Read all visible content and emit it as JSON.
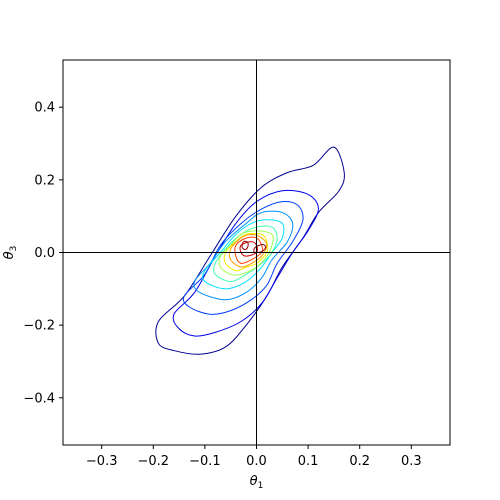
{
  "chart_data": {
    "type": "contour",
    "title": "",
    "xlabel": "θ1",
    "ylabel": "θ3",
    "xlim": [
      -0.375,
      0.375
    ],
    "ylim": [
      -0.53,
      0.53
    ],
    "xticks": [
      -0.3,
      -0.2,
      -0.1,
      0.0,
      0.1,
      0.2,
      0.3
    ],
    "xtick_labels": [
      "−0.3",
      "−0.2",
      "−0.1",
      "0.0",
      "0.1",
      "0.2",
      "0.3"
    ],
    "yticks": [
      0.4,
      0.2,
      0.0,
      -0.2,
      -0.4
    ],
    "ytick_labels": [
      "0.4",
      "0.2",
      "0.0",
      "−0.2",
      "−0.4"
    ],
    "reference_lines": {
      "x": 0.0,
      "y": 0.0,
      "color": "#000000"
    },
    "grid": false,
    "legend": false,
    "colormap": "jet",
    "density_center": [
      -0.01,
      0.01
    ],
    "contours": [
      {
        "level": 1,
        "color": "#00008f",
        "points": [
          [
            -0.16,
            -0.27
          ],
          [
            -0.19,
            -0.25
          ],
          [
            -0.19,
            -0.19
          ],
          [
            -0.14,
            -0.12
          ],
          [
            -0.09,
            -0.01
          ],
          [
            -0.04,
            0.1
          ],
          [
            0.01,
            0.18
          ],
          [
            0.06,
            0.22
          ],
          [
            0.11,
            0.24
          ],
          [
            0.15,
            0.29
          ],
          [
            0.17,
            0.22
          ],
          [
            0.16,
            0.17
          ],
          [
            0.12,
            0.11
          ],
          [
            0.09,
            0.04
          ],
          [
            0.05,
            -0.04
          ],
          [
            0.02,
            -0.12
          ],
          [
            -0.02,
            -0.2
          ],
          [
            -0.06,
            -0.26
          ],
          [
            -0.11,
            -0.28
          ]
        ]
      },
      {
        "level": 2,
        "color": "#0000ee",
        "points": [
          [
            -0.15,
            -0.21
          ],
          [
            -0.16,
            -0.17
          ],
          [
            -0.12,
            -0.11
          ],
          [
            -0.08,
            -0.01
          ],
          [
            -0.04,
            0.08
          ],
          [
            0.0,
            0.14
          ],
          [
            0.05,
            0.17
          ],
          [
            0.1,
            0.16
          ],
          [
            0.12,
            0.12
          ],
          [
            0.1,
            0.06
          ],
          [
            0.07,
            0.0
          ],
          [
            0.04,
            -0.07
          ],
          [
            0.01,
            -0.14
          ],
          [
            -0.03,
            -0.19
          ],
          [
            -0.08,
            -0.22
          ],
          [
            -0.12,
            -0.23
          ]
        ]
      },
      {
        "level": 3,
        "color": "#0040ff",
        "points": [
          [
            -0.13,
            -0.15
          ],
          [
            -0.14,
            -0.12
          ],
          [
            -0.1,
            -0.06
          ],
          [
            -0.07,
            0.02
          ],
          [
            -0.03,
            0.08
          ],
          [
            0.01,
            0.12
          ],
          [
            0.05,
            0.14
          ],
          [
            0.08,
            0.13
          ],
          [
            0.09,
            0.09
          ],
          [
            0.07,
            0.03
          ],
          [
            0.04,
            -0.03
          ],
          [
            0.02,
            -0.09
          ],
          [
            -0.01,
            -0.13
          ],
          [
            -0.05,
            -0.16
          ],
          [
            -0.09,
            -0.17
          ]
        ]
      },
      {
        "level": 4,
        "color": "#0090ff",
        "points": [
          [
            -0.11,
            -0.11
          ],
          [
            -0.12,
            -0.08
          ],
          [
            -0.09,
            -0.03
          ],
          [
            -0.06,
            0.03
          ],
          [
            -0.02,
            0.08
          ],
          [
            0.01,
            0.11
          ],
          [
            0.05,
            0.11
          ],
          [
            0.07,
            0.08
          ],
          [
            0.06,
            0.03
          ],
          [
            0.03,
            -0.02
          ],
          [
            0.01,
            -0.07
          ],
          [
            -0.02,
            -0.11
          ],
          [
            -0.06,
            -0.13
          ]
        ]
      },
      {
        "level": 5,
        "color": "#00e0ff",
        "points": [
          [
            -0.1,
            -0.08
          ],
          [
            -0.1,
            -0.05
          ],
          [
            -0.07,
            0.0
          ],
          [
            -0.04,
            0.05
          ],
          [
            -0.01,
            0.08
          ],
          [
            0.02,
            0.09
          ],
          [
            0.05,
            0.08
          ],
          [
            0.05,
            0.04
          ],
          [
            0.03,
            0.0
          ],
          [
            0.01,
            -0.04
          ],
          [
            -0.02,
            -0.08
          ],
          [
            -0.06,
            -0.1
          ]
        ]
      },
      {
        "level": 6,
        "color": "#40ffb0",
        "points": [
          [
            -0.08,
            -0.06
          ],
          [
            -0.08,
            -0.03
          ],
          [
            -0.06,
            0.01
          ],
          [
            -0.03,
            0.05
          ],
          [
            0.0,
            0.07
          ],
          [
            0.03,
            0.07
          ],
          [
            0.04,
            0.04
          ],
          [
            0.03,
            0.0
          ],
          [
            0.01,
            -0.03
          ],
          [
            -0.02,
            -0.06
          ],
          [
            -0.05,
            -0.08
          ]
        ]
      },
      {
        "level": 7,
        "color": "#a0ff50",
        "points": [
          [
            -0.07,
            -0.04
          ],
          [
            -0.07,
            -0.01
          ],
          [
            -0.05,
            0.02
          ],
          [
            -0.03,
            0.05
          ],
          [
            0.0,
            0.06
          ],
          [
            0.03,
            0.05
          ],
          [
            0.03,
            0.02
          ],
          [
            0.02,
            -0.01
          ],
          [
            0.0,
            -0.04
          ],
          [
            -0.03,
            -0.06
          ],
          [
            -0.05,
            -0.06
          ]
        ]
      },
      {
        "level": 8,
        "color": "#f0f000",
        "points": [
          [
            -0.06,
            -0.03
          ],
          [
            -0.06,
            0.0
          ],
          [
            -0.04,
            0.03
          ],
          [
            -0.02,
            0.05
          ],
          [
            0.01,
            0.05
          ],
          [
            0.02,
            0.03
          ],
          [
            0.02,
            0.0
          ],
          [
            0.0,
            -0.03
          ],
          [
            -0.02,
            -0.04
          ],
          [
            -0.04,
            -0.05
          ]
        ]
      },
      {
        "level": 9,
        "color": "#ffa000",
        "points": [
          [
            -0.05,
            -0.02
          ],
          [
            -0.05,
            0.01
          ],
          [
            -0.03,
            0.04
          ],
          [
            -0.01,
            0.05
          ],
          [
            0.01,
            0.04
          ],
          [
            0.02,
            0.02
          ],
          [
            0.01,
            -0.01
          ],
          [
            -0.01,
            -0.03
          ],
          [
            -0.03,
            -0.04
          ]
        ]
      },
      {
        "level": 10,
        "color": "#ff4000",
        "points": [
          [
            -0.04,
            -0.01
          ],
          [
            -0.04,
            0.02
          ],
          [
            -0.02,
            0.04
          ],
          [
            0.0,
            0.04
          ],
          [
            0.01,
            0.02
          ],
          [
            0.01,
            0.0
          ],
          [
            -0.01,
            -0.02
          ],
          [
            -0.03,
            -0.03
          ]
        ]
      },
      {
        "level": 11,
        "color": "#d00000",
        "points": [
          [
            -0.03,
            0.0
          ],
          [
            -0.03,
            0.02
          ],
          [
            -0.01,
            0.03
          ],
          [
            0.0,
            0.02
          ],
          [
            0.0,
            0.0
          ],
          [
            -0.02,
            -0.01
          ]
        ]
      },
      {
        "level": 12,
        "color": "#8f0000",
        "points": [
          [
            -0.028,
            0.015
          ],
          [
            -0.025,
            0.03
          ],
          [
            -0.017,
            0.028
          ],
          [
            -0.017,
            0.015
          ],
          [
            -0.022,
            0.008
          ]
        ]
      },
      {
        "level": 12,
        "color": "#8f0000",
        "points": [
          [
            -0.005,
            0.003
          ],
          [
            -0.002,
            0.015
          ],
          [
            0.012,
            0.022
          ],
          [
            0.018,
            0.015
          ],
          [
            0.012,
            0.004
          ],
          [
            0.002,
            0.0
          ]
        ]
      }
    ]
  }
}
